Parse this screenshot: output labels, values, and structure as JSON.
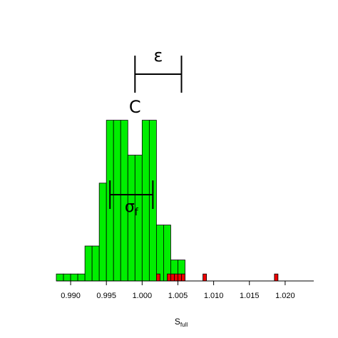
{
  "chart_data": {
    "type": "bar",
    "xlabel": "S",
    "xlabel_subscript": "full",
    "ylabel": "",
    "xlim": [
      0.988,
      1.024
    ],
    "x_ticks": [
      "0.990",
      "0.995",
      "1.000",
      "1.005",
      "1.010",
      "1.015",
      "1.020"
    ],
    "x_tick_values": [
      0.99,
      0.995,
      1.0,
      1.005,
      1.01,
      1.015,
      1.02
    ],
    "grid": false,
    "series": [
      {
        "color": "#00ee00",
        "bin_width": 0.001,
        "bins": [
          {
            "x": 0.988,
            "count": 0.5
          },
          {
            "x": 0.989,
            "count": 0.5
          },
          {
            "x": 0.99,
            "count": 0.5
          },
          {
            "x": 0.991,
            "count": 0.5
          },
          {
            "x": 0.992,
            "count": 2.5
          },
          {
            "x": 0.993,
            "count": 2.5
          },
          {
            "x": 0.994,
            "count": 7
          },
          {
            "x": 0.995,
            "count": 11.5
          },
          {
            "x": 0.996,
            "count": 11.5
          },
          {
            "x": 0.997,
            "count": 11.5
          },
          {
            "x": 0.998,
            "count": 9
          },
          {
            "x": 0.999,
            "count": 9
          },
          {
            "x": 1.0,
            "count": 11.5
          },
          {
            "x": 1.001,
            "count": 11.5
          },
          {
            "x": 1.002,
            "count": 4
          },
          {
            "x": 1.003,
            "count": 4
          },
          {
            "x": 1.004,
            "count": 1.5
          },
          {
            "x": 1.005,
            "count": 1.5
          }
        ]
      },
      {
        "color": "#ee0000",
        "bin_width": 0.0005,
        "bins": [
          {
            "x": 1.002,
            "count": 0.5
          },
          {
            "x": 1.0035,
            "count": 0.5
          },
          {
            "x": 1.004,
            "count": 0.5
          },
          {
            "x": 1.0045,
            "count": 0.5
          },
          {
            "x": 1.005,
            "count": 0.5
          },
          {
            "x": 1.0055,
            "count": 0.5
          },
          {
            "x": 1.0085,
            "count": 0.5
          },
          {
            "x": 1.0185,
            "count": 0.5
          }
        ]
      }
    ],
    "annotations": {
      "epsilon": {
        "label": "ε",
        "x_start": 0.999,
        "x_end": 1.0055
      },
      "center": {
        "label": "C",
        "x": 0.999
      },
      "sigma": {
        "label": "σ",
        "label_subscript": "f",
        "x_start": 0.9955,
        "x_end": 1.0015
      }
    }
  }
}
